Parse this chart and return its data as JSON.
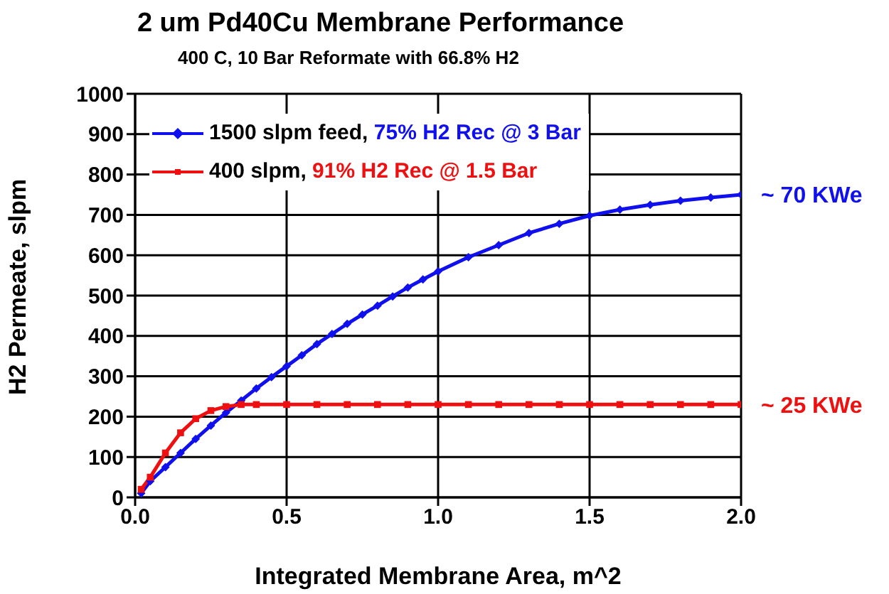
{
  "chart_data": {
    "type": "line",
    "title": "2 um Pd40Cu Membrane Performance",
    "subtitle": "400 C, 10 Bar Reformate with 66.8% H2",
    "xlabel": "Integrated Membrane Area, m^2",
    "ylabel": "H2 Permeate, slpm",
    "xlim": [
      0,
      2
    ],
    "xticks": [
      {
        "value": 0,
        "label": "0.0"
      },
      0.5,
      {
        "value": 1,
        "label": "1.0"
      },
      1.5,
      {
        "value": 2,
        "label": "2.0"
      }
    ],
    "ylim": [
      0,
      1000
    ],
    "yticks": [
      0,
      100,
      200,
      300,
      400,
      500,
      600,
      700,
      800,
      900,
      1000
    ],
    "grid": true,
    "legend": "top left",
    "line_style": "solid",
    "series": [
      {
        "name": "1500 slpm feed, 75% H2 Rec @ 3 Bar",
        "color": "#1010ee",
        "marker": "diamond",
        "x": [
          0.02,
          0.05,
          0.1,
          0.15,
          0.2,
          0.25,
          0.3,
          0.35,
          0.4,
          0.45,
          0.5,
          0.55,
          0.6,
          0.65,
          0.7,
          0.75,
          0.8,
          0.85,
          0.9,
          0.95,
          1.0,
          1.1,
          1.2,
          1.3,
          1.4,
          1.5,
          1.6,
          1.7,
          1.8,
          1.9,
          2.0
        ],
        "values": [
          10,
          40,
          75,
          110,
          145,
          178,
          210,
          240,
          270,
          298,
          325,
          352,
          380,
          405,
          430,
          453,
          475,
          498,
          520,
          540,
          560,
          595,
          625,
          655,
          678,
          698,
          713,
          725,
          735,
          743,
          750
        ]
      },
      {
        "name": "400 slpm, 91% H2 Rec @ 1.5 Bar",
        "color": "#ee1010",
        "marker": "square",
        "x": [
          0.02,
          0.05,
          0.1,
          0.15,
          0.2,
          0.25,
          0.3,
          0.35,
          0.4,
          0.5,
          0.6,
          0.7,
          0.8,
          0.9,
          1.0,
          1.1,
          1.2,
          1.3,
          1.4,
          1.5,
          1.6,
          1.7,
          1.8,
          1.9,
          2.0
        ],
        "values": [
          20,
          50,
          110,
          160,
          195,
          215,
          225,
          230,
          230,
          230,
          230,
          230,
          230,
          230,
          230,
          230,
          230,
          230,
          230,
          230,
          230,
          230,
          230,
          230,
          230
        ]
      }
    ],
    "annotations": [
      {
        "text": "~ 70 KWe",
        "x": 2.0,
        "y": 750
      },
      {
        "text": "~ 25 KWe",
        "x": 2.0,
        "y": 230
      }
    ]
  }
}
